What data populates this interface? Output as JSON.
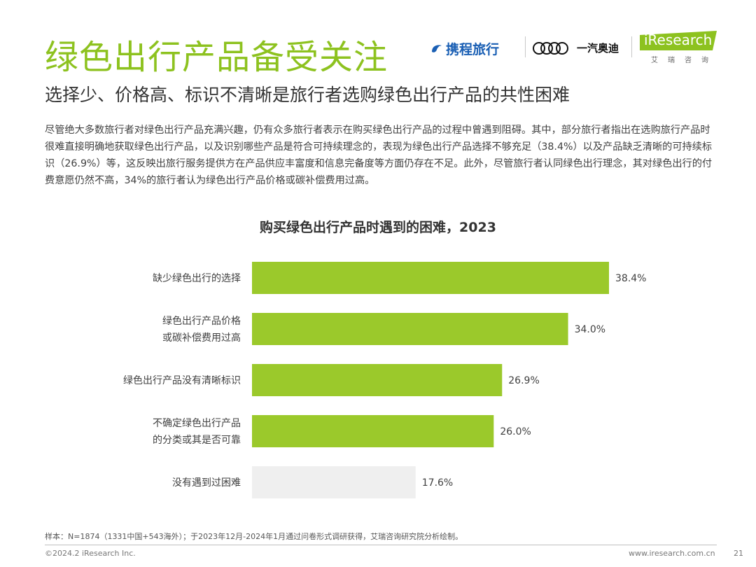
{
  "header": {
    "title": "绿色出行产品备受关注",
    "subtitle": "选择少、价格高、标识不清晰是旅行者选购绿色出行产品的共性困难"
  },
  "logos": {
    "ctrip": "携程旅行",
    "faw_audi": "一汽奥迪",
    "iresearch": "iResearch",
    "iresearch_cn": "艾瑞咨询"
  },
  "body_text": "尽管绝大多数旅行者对绿色出行产品充满兴趣，仍有众多旅行者表示在购买绿色出行产品的过程中曾遇到阻碍。其中，部分旅行者指出在选购旅行产品时很难直接明确地获取绿色出行产品，以及识别哪些产品是符合可持续理念的，表现为绿色出行产品选择不够充足（38.4%）以及产品缺乏清晰的可持续标识（26.9%）等，这反映出旅行服务提供方在产品供应丰富度和信息完备度等方面仍存在不足。此外，尽管旅行者认同绿色出行理念，其对绿色出行的付费意愿仍然不高，34%的旅行者认为绿色出行产品价格或碳补偿费用过高。",
  "chart_data": {
    "type": "bar",
    "orientation": "horizontal",
    "title": "购买绿色出行产品时遇到的困难，2023",
    "categories": [
      [
        "缺少绿色出行的选择"
      ],
      [
        "绿色出行产品价格",
        "或碳补偿费用过高"
      ],
      [
        "绿色出行产品没有清晰标识"
      ],
      [
        "不确定绿色出行产品",
        "的分类或其是否可靠"
      ],
      [
        "没有遇到过困难"
      ]
    ],
    "values": [
      38.4,
      34.0,
      26.9,
      26.0,
      17.6
    ],
    "value_labels": [
      "38.4%",
      "34.0%",
      "26.9%",
      "26.0%",
      "17.6%"
    ],
    "unit": "%",
    "xlim": [
      0,
      38.4
    ],
    "colors": [
      "#9bc92b",
      "#9bc92b",
      "#9bc92b",
      "#9bc92b",
      "#efefef"
    ],
    "grid": false,
    "legend": false
  },
  "footer": {
    "source": "样本：N=1874（1331中国+543海外）；于2023年12月-2024年1月通过问卷形式调研获得，艾瑞咨询研究院分析绘制。",
    "copyright": "©2024.2 iResearch Inc.",
    "url": "www.iresearch.com.cn",
    "page": "21"
  }
}
